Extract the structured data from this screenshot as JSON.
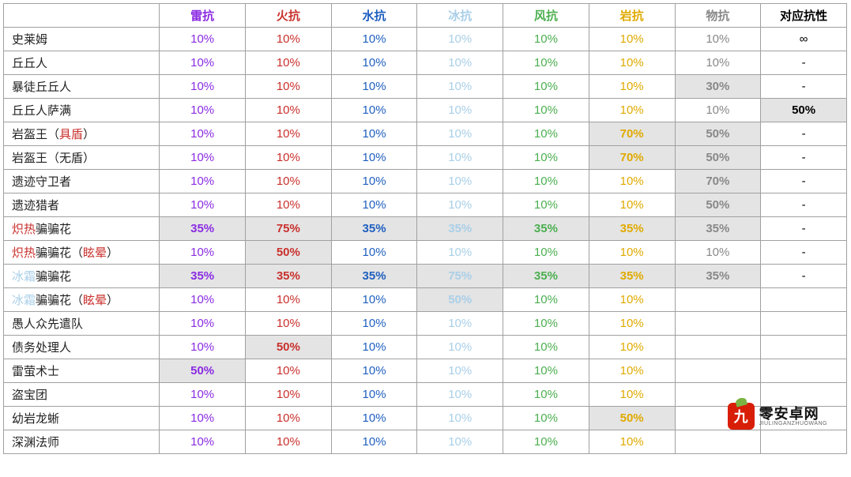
{
  "table": {
    "name_col_width": 196,
    "val_col_width": 108,
    "columns": [
      {
        "label": "雷抗",
        "color": "#8a2be2"
      },
      {
        "label": "火抗",
        "color": "#c9302c"
      },
      {
        "label": "水抗",
        "color": "#1f5fbf"
      },
      {
        "label": "冰抗",
        "color": "#a9cfe8"
      },
      {
        "label": "风抗",
        "color": "#4caf50"
      },
      {
        "label": "岩抗",
        "color": "#e0aa00"
      },
      {
        "label": "物抗",
        "color": "#888888"
      },
      {
        "label": "对应抗性",
        "color": "#000000"
      }
    ],
    "default_cell_colors": [
      "#8a2be2",
      "#c9302c",
      "#1f5fbf",
      "#a9cfe8",
      "#4caf50",
      "#e0aa00",
      "#888888",
      "#000000"
    ],
    "rows": [
      {
        "name_segments": [
          {
            "t": "史莱姆",
            "c": "#222"
          }
        ],
        "cells": [
          {
            "v": "10%"
          },
          {
            "v": "10%"
          },
          {
            "v": "10%"
          },
          {
            "v": "10%"
          },
          {
            "v": "10%"
          },
          {
            "v": "10%"
          },
          {
            "v": "10%"
          },
          {
            "v": "∞"
          }
        ]
      },
      {
        "name_segments": [
          {
            "t": "丘丘人",
            "c": "#222"
          }
        ],
        "cells": [
          {
            "v": "10%"
          },
          {
            "v": "10%"
          },
          {
            "v": "10%"
          },
          {
            "v": "10%"
          },
          {
            "v": "10%"
          },
          {
            "v": "10%"
          },
          {
            "v": "10%"
          },
          {
            "v": "-"
          }
        ]
      },
      {
        "name_segments": [
          {
            "t": "暴徒丘丘人",
            "c": "#222"
          }
        ],
        "cells": [
          {
            "v": "10%"
          },
          {
            "v": "10%"
          },
          {
            "v": "10%"
          },
          {
            "v": "10%"
          },
          {
            "v": "10%"
          },
          {
            "v": "10%"
          },
          {
            "v": "30%",
            "shade": true,
            "bold": true
          },
          {
            "v": "-"
          }
        ]
      },
      {
        "name_segments": [
          {
            "t": "丘丘人萨满",
            "c": "#222"
          }
        ],
        "cells": [
          {
            "v": "10%"
          },
          {
            "v": "10%"
          },
          {
            "v": "10%"
          },
          {
            "v": "10%"
          },
          {
            "v": "10%"
          },
          {
            "v": "10%"
          },
          {
            "v": "10%"
          },
          {
            "v": "50%",
            "shade": true,
            "bold": true
          }
        ]
      },
      {
        "name_segments": [
          {
            "t": "岩盔王（",
            "c": "#222"
          },
          {
            "t": "具盾",
            "c": "#c9302c"
          },
          {
            "t": "）",
            "c": "#222"
          }
        ],
        "cells": [
          {
            "v": "10%"
          },
          {
            "v": "10%"
          },
          {
            "v": "10%"
          },
          {
            "v": "10%"
          },
          {
            "v": "10%"
          },
          {
            "v": "70%",
            "shade": true,
            "bold": true
          },
          {
            "v": "50%",
            "shade": true,
            "bold": true
          },
          {
            "v": "-"
          }
        ]
      },
      {
        "name_segments": [
          {
            "t": "岩盔王（无盾）",
            "c": "#222"
          }
        ],
        "cells": [
          {
            "v": "10%"
          },
          {
            "v": "10%"
          },
          {
            "v": "10%"
          },
          {
            "v": "10%"
          },
          {
            "v": "10%"
          },
          {
            "v": "70%",
            "shade": true,
            "bold": true
          },
          {
            "v": "50%",
            "shade": true,
            "bold": true
          },
          {
            "v": "-"
          }
        ]
      },
      {
        "name_segments": [
          {
            "t": "遗迹守卫者",
            "c": "#222"
          }
        ],
        "cells": [
          {
            "v": "10%"
          },
          {
            "v": "10%"
          },
          {
            "v": "10%"
          },
          {
            "v": "10%"
          },
          {
            "v": "10%"
          },
          {
            "v": "10%"
          },
          {
            "v": "70%",
            "shade": true,
            "bold": true
          },
          {
            "v": "-"
          }
        ]
      },
      {
        "name_segments": [
          {
            "t": "遗迹猎者",
            "c": "#222"
          }
        ],
        "cells": [
          {
            "v": "10%"
          },
          {
            "v": "10%"
          },
          {
            "v": "10%"
          },
          {
            "v": "10%"
          },
          {
            "v": "10%"
          },
          {
            "v": "10%"
          },
          {
            "v": "50%",
            "shade": true,
            "bold": true
          },
          {
            "v": "-"
          }
        ]
      },
      {
        "name_segments": [
          {
            "t": "炽热",
            "c": "#c9302c"
          },
          {
            "t": "骗骗花",
            "c": "#222"
          }
        ],
        "cells": [
          {
            "v": "35%",
            "shade": true,
            "bold": true
          },
          {
            "v": "75%",
            "shade": true,
            "bold": true
          },
          {
            "v": "35%",
            "shade": true,
            "bold": true
          },
          {
            "v": "35%",
            "shade": true,
            "bold": true
          },
          {
            "v": "35%",
            "shade": true,
            "bold": true
          },
          {
            "v": "35%",
            "shade": true,
            "bold": true
          },
          {
            "v": "35%",
            "shade": true,
            "bold": true
          },
          {
            "v": "-"
          }
        ]
      },
      {
        "name_segments": [
          {
            "t": "炽热",
            "c": "#c9302c"
          },
          {
            "t": "骗骗花（",
            "c": "#222"
          },
          {
            "t": "眩晕",
            "c": "#c9302c"
          },
          {
            "t": "）",
            "c": "#222"
          }
        ],
        "cells": [
          {
            "v": "10%"
          },
          {
            "v": "50%",
            "shade": true,
            "bold": true
          },
          {
            "v": "10%"
          },
          {
            "v": "10%"
          },
          {
            "v": "10%"
          },
          {
            "v": "10%"
          },
          {
            "v": "10%"
          },
          {
            "v": "-"
          }
        ]
      },
      {
        "name_segments": [
          {
            "t": "冰霜",
            "c": "#a9cfe8"
          },
          {
            "t": "骗骗花",
            "c": "#222"
          }
        ],
        "cells": [
          {
            "v": "35%",
            "shade": true,
            "bold": true
          },
          {
            "v": "35%",
            "shade": true,
            "bold": true
          },
          {
            "v": "35%",
            "shade": true,
            "bold": true
          },
          {
            "v": "75%",
            "shade": true,
            "bold": true
          },
          {
            "v": "35%",
            "shade": true,
            "bold": true
          },
          {
            "v": "35%",
            "shade": true,
            "bold": true
          },
          {
            "v": "35%",
            "shade": true,
            "bold": true
          },
          {
            "v": "-"
          }
        ]
      },
      {
        "name_segments": [
          {
            "t": "冰霜",
            "c": "#a9cfe8"
          },
          {
            "t": "骗骗花（",
            "c": "#222"
          },
          {
            "t": "眩晕",
            "c": "#c9302c"
          },
          {
            "t": "）",
            "c": "#222"
          }
        ],
        "cells": [
          {
            "v": "10%"
          },
          {
            "v": "10%"
          },
          {
            "v": "10%"
          },
          {
            "v": "50%",
            "shade": true,
            "bold": true
          },
          {
            "v": "10%"
          },
          {
            "v": "10%"
          },
          {
            "v": ""
          },
          {
            "v": ""
          }
        ]
      },
      {
        "name_segments": [
          {
            "t": "愚人众先遣队",
            "c": "#222"
          }
        ],
        "cells": [
          {
            "v": "10%"
          },
          {
            "v": "10%"
          },
          {
            "v": "10%"
          },
          {
            "v": "10%"
          },
          {
            "v": "10%"
          },
          {
            "v": "10%"
          },
          {
            "v": ""
          },
          {
            "v": ""
          }
        ]
      },
      {
        "name_segments": [
          {
            "t": "债务处理人",
            "c": "#222"
          }
        ],
        "cells": [
          {
            "v": "10%"
          },
          {
            "v": "50%",
            "shade": true,
            "bold": true
          },
          {
            "v": "10%"
          },
          {
            "v": "10%"
          },
          {
            "v": "10%"
          },
          {
            "v": "10%"
          },
          {
            "v": ""
          },
          {
            "v": ""
          }
        ]
      },
      {
        "name_segments": [
          {
            "t": "雷萤术士",
            "c": "#222"
          }
        ],
        "cells": [
          {
            "v": "50%",
            "shade": true,
            "bold": true
          },
          {
            "v": "10%"
          },
          {
            "v": "10%"
          },
          {
            "v": "10%"
          },
          {
            "v": "10%"
          },
          {
            "v": "10%"
          },
          {
            "v": ""
          },
          {
            "v": ""
          }
        ]
      },
      {
        "name_segments": [
          {
            "t": "盗宝团",
            "c": "#222"
          }
        ],
        "cells": [
          {
            "v": "10%"
          },
          {
            "v": "10%"
          },
          {
            "v": "10%"
          },
          {
            "v": "10%"
          },
          {
            "v": "10%"
          },
          {
            "v": "10%"
          },
          {
            "v": ""
          },
          {
            "v": ""
          }
        ]
      },
      {
        "name_segments": [
          {
            "t": "幼岩龙蜥",
            "c": "#222"
          }
        ],
        "cells": [
          {
            "v": "10%"
          },
          {
            "v": "10%"
          },
          {
            "v": "10%"
          },
          {
            "v": "10%"
          },
          {
            "v": "10%"
          },
          {
            "v": "50%",
            "shade": true,
            "bold": true
          },
          {
            "v": ""
          },
          {
            "v": ""
          }
        ]
      },
      {
        "name_segments": [
          {
            "t": "深渊法师",
            "c": "#222"
          }
        ],
        "cells": [
          {
            "v": "10%"
          },
          {
            "v": "10%"
          },
          {
            "v": "10%"
          },
          {
            "v": "10%"
          },
          {
            "v": "10%"
          },
          {
            "v": "10%"
          },
          {
            "v": ""
          },
          {
            "v": ""
          }
        ]
      }
    ]
  },
  "watermark": {
    "icon_char": "九",
    "main": "零安卓网",
    "sub": "JIULINGANZHUOWANG"
  }
}
